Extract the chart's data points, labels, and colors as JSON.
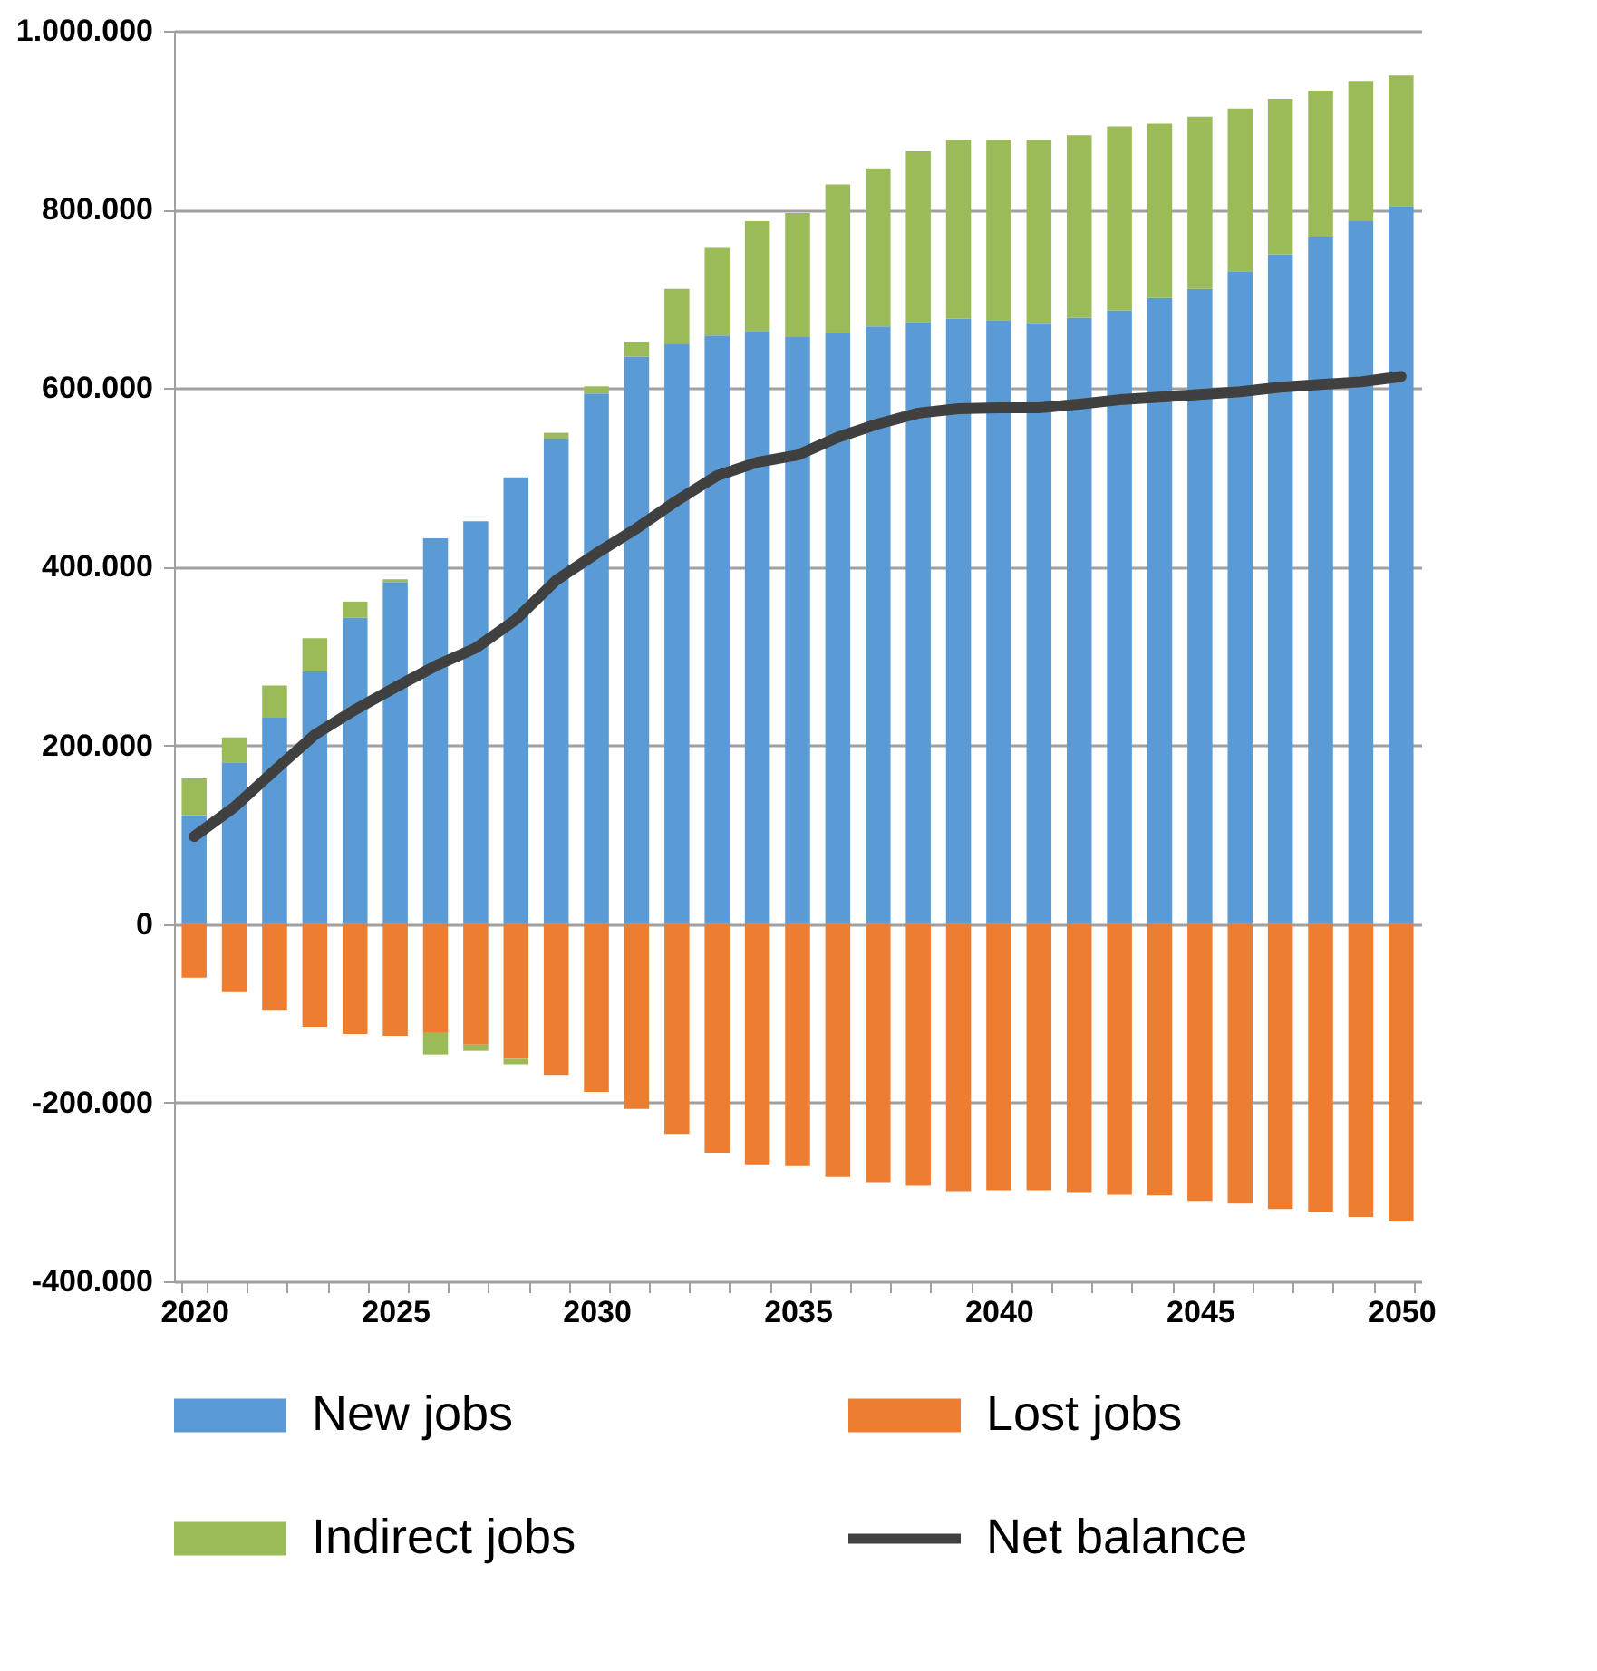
{
  "chart_data": {
    "type": "bar",
    "stacked": true,
    "categories": [
      "2020",
      null,
      null,
      null,
      null,
      "2025",
      null,
      null,
      null,
      null,
      "2030",
      null,
      null,
      null,
      null,
      "2035",
      null,
      null,
      null,
      null,
      "2040",
      null,
      null,
      null,
      null,
      "2045",
      null,
      null,
      null,
      null,
      "2050"
    ],
    "series": [
      {
        "name": "New jobs",
        "color": "#5b9bd5",
        "values": [
          122000,
          181000,
          231000,
          283000,
          343000,
          383000,
          432000,
          451000,
          500000,
          543000,
          594000,
          635000,
          649000,
          659000,
          664000,
          657000,
          662000,
          669000,
          674000,
          678000,
          676000,
          673000,
          679000,
          687000,
          701000,
          711000,
          731000,
          750000,
          769000,
          787000,
          804000
        ]
      },
      {
        "name": "Lost jobs",
        "color": "#ed7d31",
        "values": [
          -60000,
          -76000,
          -97000,
          -115000,
          -123000,
          -125000,
          -121000,
          -135000,
          -151000,
          -169000,
          -188000,
          -207000,
          -235000,
          -256000,
          -270000,
          -271000,
          -283000,
          -289000,
          -293000,
          -299000,
          -298000,
          -298000,
          -300000,
          -303000,
          -304000,
          -310000,
          -313000,
          -319000,
          -322000,
          -328000,
          -332000
        ]
      },
      {
        "name": "Indirect jobs",
        "color": "#9bbb59",
        "values": [
          41000,
          28000,
          36000,
          37000,
          18000,
          3000,
          -25000,
          -7000,
          -6000,
          7000,
          8000,
          17000,
          62000,
          98000,
          123000,
          139000,
          166000,
          177000,
          191000,
          200000,
          202000,
          205000,
          204000,
          206000,
          195000,
          193000,
          182000,
          174000,
          164000,
          157000,
          146000
        ]
      },
      {
        "name": "Net balance",
        "type": "line",
        "color": "#404040",
        "values": [
          98000,
          131000,
          172000,
          212000,
          240000,
          265000,
          289000,
          309000,
          341000,
          385000,
          415000,
          443000,
          474000,
          502000,
          517000,
          525000,
          545000,
          560000,
          572000,
          577000,
          578000,
          578000,
          582000,
          587000,
          590000,
          593000,
          596000,
          601000,
          604000,
          607000,
          613000
        ]
      }
    ],
    "ylim": [
      -400000,
      1000000
    ],
    "yticks": [
      {
        "value": -400000,
        "label": "-400.000"
      },
      {
        "value": -200000,
        "label": "-200.000"
      },
      {
        "value": 0,
        "label": "0"
      },
      {
        "value": 200000,
        "label": "200.000"
      },
      {
        "value": 400000,
        "label": "400.000"
      },
      {
        "value": 600000,
        "label": "600.000"
      },
      {
        "value": 800000,
        "label": "800.000"
      },
      {
        "value": 1000000,
        "label": "1.000.000"
      }
    ],
    "grid": "y",
    "legend": "bottom",
    "line_style": "solid",
    "marker": "none"
  }
}
